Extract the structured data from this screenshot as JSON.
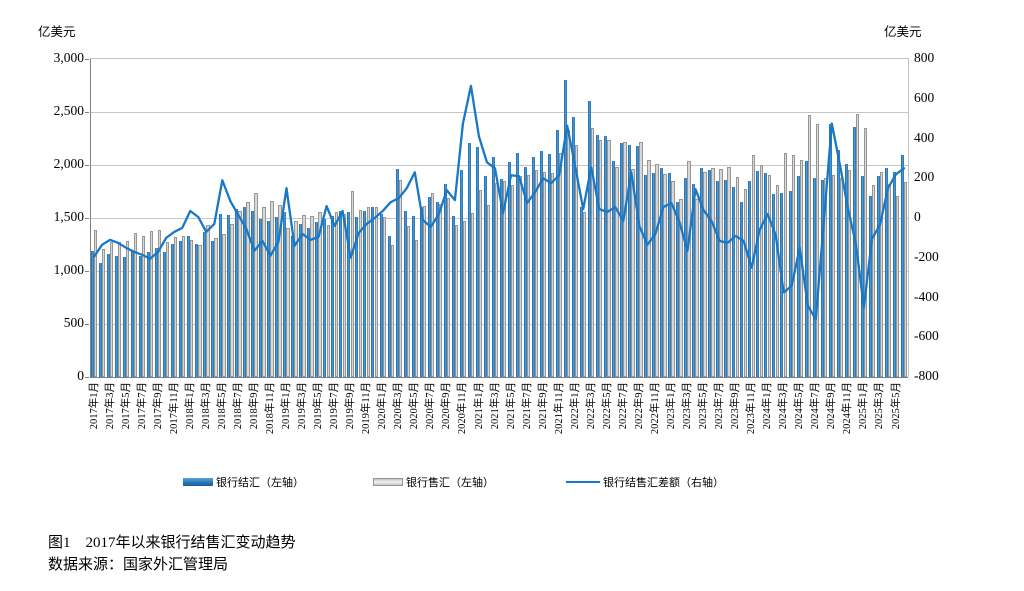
{
  "figure": {
    "caption": "图1　2017年以来银行结售汇变动趋势",
    "source": "数据来源：国家外汇管理局"
  },
  "legend": [
    {
      "label": "银行结汇（左轴）",
      "swatch": "blue-bar"
    },
    {
      "label": "银行售汇（左轴）",
      "swatch": "gray-bar"
    },
    {
      "label": "银行结售汇差额（右轴）",
      "swatch": "blue-line"
    }
  ],
  "colors": {
    "settlement_bar": "#2e7dc1",
    "sales_bar": "#d9d9d9",
    "balance_line": "#1878c8",
    "gridline": "#c6c6c6",
    "axis": "#7f7f7f"
  },
  "chart_data": {
    "type": "bar",
    "subtype": "combo-bar-line-dual-axis",
    "title": "图1　2017年以来银行结售汇变动趋势",
    "left_axis": {
      "label": "亿美元",
      "min": 0,
      "max": 3000,
      "tick_values": [
        3000,
        2500,
        2000,
        1500,
        1000,
        500,
        0
      ],
      "tick_labels": [
        "3,000",
        "2,500",
        "2,000",
        "1,500",
        "1,000",
        "500",
        "0"
      ]
    },
    "right_axis": {
      "label": "亿美元",
      "min": -800,
      "max": 800,
      "tick_values": [
        800,
        600,
        400,
        200,
        0,
        -200,
        -400,
        -600,
        -800
      ],
      "tick_labels": [
        "800",
        "600",
        "400",
        "200",
        "0",
        "-200",
        "-400",
        "-600",
        "-800"
      ]
    },
    "x_tick_step": 2,
    "grid": true,
    "legend_position": "bottom",
    "months": [
      "2017年1月",
      "2017年2月",
      "2017年3月",
      "2017年4月",
      "2017年5月",
      "2017年6月",
      "2017年7月",
      "2017年8月",
      "2017年9月",
      "2017年10月",
      "2017年11月",
      "2017年12月",
      "2018年1月",
      "2018年2月",
      "2018年3月",
      "2018年4月",
      "2018年5月",
      "2018年6月",
      "2018年7月",
      "2018年8月",
      "2018年9月",
      "2018年10月",
      "2018年11月",
      "2018年12月",
      "2019年1月",
      "2019年2月",
      "2019年3月",
      "2019年4月",
      "2019年5月",
      "2019年6月",
      "2019年7月",
      "2019年8月",
      "2019年9月",
      "2019年10月",
      "2019年11月",
      "2019年12月",
      "2020年1月",
      "2020年2月",
      "2020年3月",
      "2020年4月",
      "2020年5月",
      "2020年6月",
      "2020年7月",
      "2020年8月",
      "2020年9月",
      "2020年10月",
      "2020年11月",
      "2020年12月",
      "2021年1月",
      "2021年2月",
      "2021年3月",
      "2021年4月",
      "2021年5月",
      "2021年6月",
      "2021年7月",
      "2021年8月",
      "2021年9月",
      "2021年10月",
      "2021年11月",
      "2021年12月",
      "2022年1月",
      "2022年2月",
      "2022年3月",
      "2022年4月",
      "2022年5月",
      "2022年6月",
      "2022年7月",
      "2022年8月",
      "2022年9月",
      "2022年10月",
      "2022年11月",
      "2022年12月",
      "2023年1月",
      "2023年2月",
      "2023年3月",
      "2023年4月",
      "2023年5月",
      "2023年6月",
      "2023年7月",
      "2023年8月",
      "2023年9月",
      "2023年10月",
      "2023年11月",
      "2023年12月",
      "2024年1月",
      "2024年2月",
      "2024年3月",
      "2024年4月",
      "2024年5月",
      "2024年6月",
      "2024年7月",
      "2024年8月",
      "2024年9月",
      "2024年10月",
      "2024年11月",
      "2024年12月",
      "2025年1月",
      "2025年2月",
      "2025年3月",
      "2025年4月",
      "2025年5月",
      "2025年6月"
    ],
    "series": [
      {
        "name": "银行结汇（左轴）",
        "type": "bar",
        "axis": "left",
        "color": "#2e7dc1",
        "values": [
          1190,
          1075,
          1160,
          1145,
          1130,
          1190,
          1145,
          1175,
          1220,
          1175,
          1255,
          1285,
          1330,
          1255,
          1365,
          1285,
          1540,
          1525,
          1585,
          1600,
          1570,
          1490,
          1475,
          1505,
          1555,
          1330,
          1445,
          1410,
          1460,
          1490,
          1520,
          1570,
          1555,
          1505,
          1570,
          1600,
          1540,
          1330,
          1960,
          1570,
          1520,
          1600,
          1695,
          1650,
          1825,
          1520,
          1950,
          2210,
          2170,
          1900,
          2080,
          1870,
          2030,
          2110,
          1985,
          2080,
          2135,
          2100,
          2330,
          2800,
          2450,
          1600,
          2600,
          2285,
          2270,
          2040,
          2205,
          2190,
          2175,
          1910,
          1925,
          1970,
          1925,
          1655,
          1875,
          1825,
          1970,
          1955,
          1845,
          1860,
          1795,
          1655,
          1845,
          1940,
          1925,
          1725,
          1740,
          1755,
          1900,
          2035,
          1875,
          1860,
          2385,
          2145,
          2005,
          2355,
          1895,
          1710,
          1895,
          1975,
          1930,
          2090
        ]
      },
      {
        "name": "银行售汇（左轴）",
        "type": "bar",
        "axis": "left",
        "color": "#d9d9d9",
        "values": [
          1385,
          1210,
          1270,
          1270,
          1280,
          1360,
          1330,
          1380,
          1390,
          1275,
          1325,
          1335,
          1295,
          1250,
          1435,
          1315,
          1350,
          1440,
          1570,
          1655,
          1735,
          1605,
          1665,
          1625,
          1405,
          1470,
          1525,
          1520,
          1555,
          1430,
          1560,
          1535,
          1755,
          1580,
          1600,
          1600,
          1505,
          1250,
          1860,
          1420,
          1290,
          1610,
          1740,
          1630,
          1685,
          1430,
          1475,
          1545,
          1760,
          1620,
          1830,
          1845,
          1815,
          1900,
          1910,
          1950,
          1935,
          1925,
          2115,
          2335,
          2190,
          1555,
          2345,
          2240,
          2240,
          1985,
          2220,
          1960,
          2215,
          2045,
          2005,
          1915,
          1850,
          1675,
          2040,
          1680,
          1930,
          1970,
          1960,
          1985,
          1885,
          1770,
          2095,
          2000,
          1905,
          1810,
          2115,
          2095,
          2050,
          2475,
          2385,
          1880,
          1910,
          1875,
          1955,
          2485,
          2345,
          1815,
          1930,
          1825,
          1710,
          1840
        ]
      },
      {
        "name": "银行结售汇差额（右轴）",
        "type": "line",
        "axis": "right",
        "color": "#1878c8",
        "values": [
          -195,
          -135,
          -110,
          -125,
          -150,
          -170,
          -185,
          -205,
          -170,
          -100,
          -70,
          -50,
          35,
          5,
          -70,
          -30,
          190,
          85,
          15,
          -55,
          -165,
          -115,
          -190,
          -120,
          150,
          -140,
          -80,
          -110,
          -95,
          60,
          -40,
          35,
          -200,
          -75,
          -30,
          0,
          35,
          80,
          100,
          150,
          230,
          -10,
          -45,
          20,
          140,
          90,
          475,
          665,
          410,
          280,
          250,
          25,
          215,
          210,
          75,
          130,
          200,
          175,
          215,
          465,
          260,
          45,
          255,
          45,
          30,
          55,
          -15,
          230,
          -40,
          -135,
          -80,
          55,
          75,
          -20,
          -165,
          145,
          40,
          -15,
          -115,
          -125,
          -90,
          -115,
          -250,
          -60,
          20,
          -85,
          -375,
          -340,
          -150,
          -440,
          -510,
          -20,
          475,
          270,
          50,
          -130,
          -450,
          -105,
          -35,
          150,
          220,
          250
        ]
      }
    ]
  }
}
